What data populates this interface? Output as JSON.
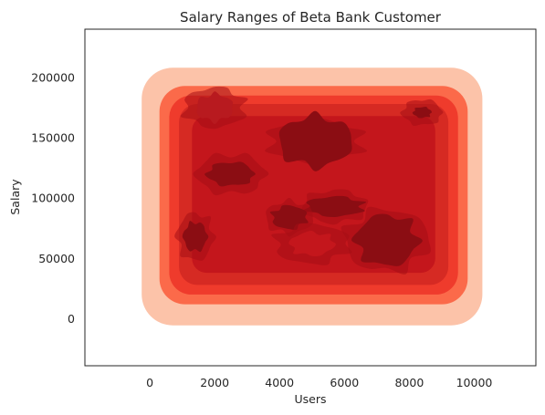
{
  "chart_data": {
    "type": "kde-contour",
    "title": "Salary Ranges of Beta Bank Customer",
    "xlabel": "Users",
    "ylabel": "Salary",
    "xlim": [
      -2000,
      11900
    ],
    "ylim": [
      -39000,
      240000
    ],
    "xticks": [
      {
        "value": 0,
        "label": "0"
      },
      {
        "value": 2000,
        "label": "2000"
      },
      {
        "value": 4000,
        "label": "4000"
      },
      {
        "value": 6000,
        "label": "6000"
      },
      {
        "value": 8000,
        "label": "8000"
      },
      {
        "value": 10000,
        "label": "10000"
      }
    ],
    "yticks": [
      {
        "value": 0,
        "label": "0"
      },
      {
        "value": 50000,
        "label": "50000"
      },
      {
        "value": 100000,
        "label": "100000"
      },
      {
        "value": 150000,
        "label": "150000"
      },
      {
        "value": 200000,
        "label": "200000"
      }
    ],
    "grid": false,
    "colormap": "Reds",
    "levels": [
      {
        "name": "outer",
        "x_range": [
          -250,
          10250
        ],
        "y_range": [
          -5500,
          208000
        ],
        "color": "#fcc3a9"
      },
      {
        "name": "band2",
        "x_range": [
          300,
          9800
        ],
        "y_range": [
          12000,
          193000
        ],
        "color": "#fb6a4a"
      },
      {
        "name": "band3",
        "x_range": [
          600,
          9500
        ],
        "y_range": [
          20000,
          185000
        ],
        "color": "#ef3b2c"
      },
      {
        "name": "band4",
        "x_range": [
          900,
          9200
        ],
        "y_range": [
          28000,
          178000
        ],
        "color": "#d62a23"
      },
      {
        "name": "band5",
        "x_range": [
          1300,
          8800
        ],
        "y_range": [
          38000,
          168000
        ],
        "color": "#c4161c"
      }
    ],
    "peaks": [
      {
        "x": 5100,
        "y": 147000,
        "color": "#8b0d13"
      },
      {
        "x": 7300,
        "y": 65000,
        "color": "#8b0d13"
      },
      {
        "x": 2500,
        "y": 120000,
        "color": "#8b0d13"
      },
      {
        "x": 5700,
        "y": 93000,
        "color": "#8b0d13"
      },
      {
        "x": 4300,
        "y": 84000,
        "color": "#8b0d13"
      },
      {
        "x": 1400,
        "y": 68000,
        "color": "#8b0d13"
      },
      {
        "x": 8400,
        "y": 171000,
        "color": "#8b0d13"
      },
      {
        "x": 2000,
        "y": 175000,
        "color": "#b81a1f"
      },
      {
        "x": 5000,
        "y": 62000,
        "color": "#c4161c"
      }
    ]
  }
}
